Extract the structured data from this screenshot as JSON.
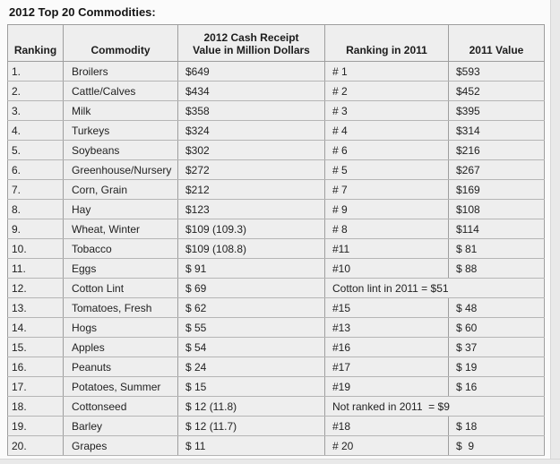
{
  "title": "2012 Top 20 Commodities:",
  "colors": {
    "page_bg": "#fbfbfb",
    "cell_bg": "#eeeeee",
    "border": "#9e9e9e",
    "text": "#222222",
    "edge_band": "#e9e9e9"
  },
  "table": {
    "columns": [
      {
        "label": "Ranking"
      },
      {
        "label": "Commodity"
      },
      {
        "label_line1": "2012 Cash Receipt",
        "label_line2": "Value in Million Dollars"
      },
      {
        "label": "Ranking in 2011"
      },
      {
        "label": "2011 Value"
      }
    ],
    "rows": [
      {
        "rank": "1.",
        "commodity": "Broilers",
        "value_2012": "$649",
        "rank_2011": "# 1",
        "value_2011": "$593"
      },
      {
        "rank": "2.",
        "commodity": "Cattle/Calves",
        "value_2012": "$434",
        "rank_2011": "# 2",
        "value_2011": "$452"
      },
      {
        "rank": "3.",
        "commodity": "Milk",
        "value_2012": "$358",
        "rank_2011": "# 3",
        "value_2011": "$395"
      },
      {
        "rank": "4.",
        "commodity": "Turkeys",
        "value_2012": "$324",
        "rank_2011": "# 4",
        "value_2011": "$314"
      },
      {
        "rank": "5.",
        "commodity": "Soybeans",
        "value_2012": "$302",
        "rank_2011": "# 6",
        "value_2011": "$216"
      },
      {
        "rank": "6.",
        "commodity": "Greenhouse/Nursery",
        "value_2012": "$272",
        "rank_2011": "# 5",
        "value_2011": "$267"
      },
      {
        "rank": "7.",
        "commodity": "Corn, Grain",
        "value_2012": "$212",
        "rank_2011": "# 7",
        "value_2011": "$169"
      },
      {
        "rank": "8.",
        "commodity": "Hay",
        "value_2012": "$123",
        "rank_2011": "# 9",
        "value_2011": "$108"
      },
      {
        "rank": "9.",
        "commodity": "Wheat, Winter",
        "value_2012": "$109 (109.3)",
        "rank_2011": "# 8",
        "value_2011": "$114"
      },
      {
        "rank": "10.",
        "commodity": "Tobacco",
        "value_2012": "$109 (108.8)",
        "rank_2011": "#11",
        "value_2011": "$ 81"
      },
      {
        "rank": "11.",
        "commodity": "Eggs",
        "value_2012": "$ 91",
        "rank_2011": "#10",
        "value_2011": "$ 88"
      },
      {
        "rank": "12.",
        "commodity": "Cotton Lint",
        "value_2012": "$ 69",
        "merged_note": "Cotton lint in 2011 = $51"
      },
      {
        "rank": "13.",
        "commodity": "Tomatoes, Fresh",
        "value_2012": "$ 62",
        "rank_2011": "#15",
        "value_2011": "$ 48"
      },
      {
        "rank": "14.",
        "commodity": "Hogs",
        "value_2012": "$ 55",
        "rank_2011": "#13",
        "value_2011": "$ 60"
      },
      {
        "rank": "15.",
        "commodity": "Apples",
        "value_2012": "$ 54",
        "rank_2011": "#16",
        "value_2011": "$ 37"
      },
      {
        "rank": "16.",
        "commodity": "Peanuts",
        "value_2012": "$ 24",
        "rank_2011": "#17",
        "value_2011": "$ 19"
      },
      {
        "rank": "17.",
        "commodity": "Potatoes, Summer",
        "value_2012": "$ 15",
        "rank_2011": "#19",
        "value_2011": "$ 16"
      },
      {
        "rank": "18.",
        "commodity": "Cottonseed",
        "value_2012": "$ 12 (11.8)",
        "merged_note": "Not ranked in 2011  = $9"
      },
      {
        "rank": "19.",
        "commodity": "Barley",
        "value_2012": "$ 12 (11.7)",
        "rank_2011": "#18",
        "value_2011": "$ 18"
      },
      {
        "rank": "20.",
        "commodity": "Grapes",
        "value_2012": "$ 11",
        "rank_2011": "# 20",
        "value_2011": "$  9"
      }
    ]
  }
}
